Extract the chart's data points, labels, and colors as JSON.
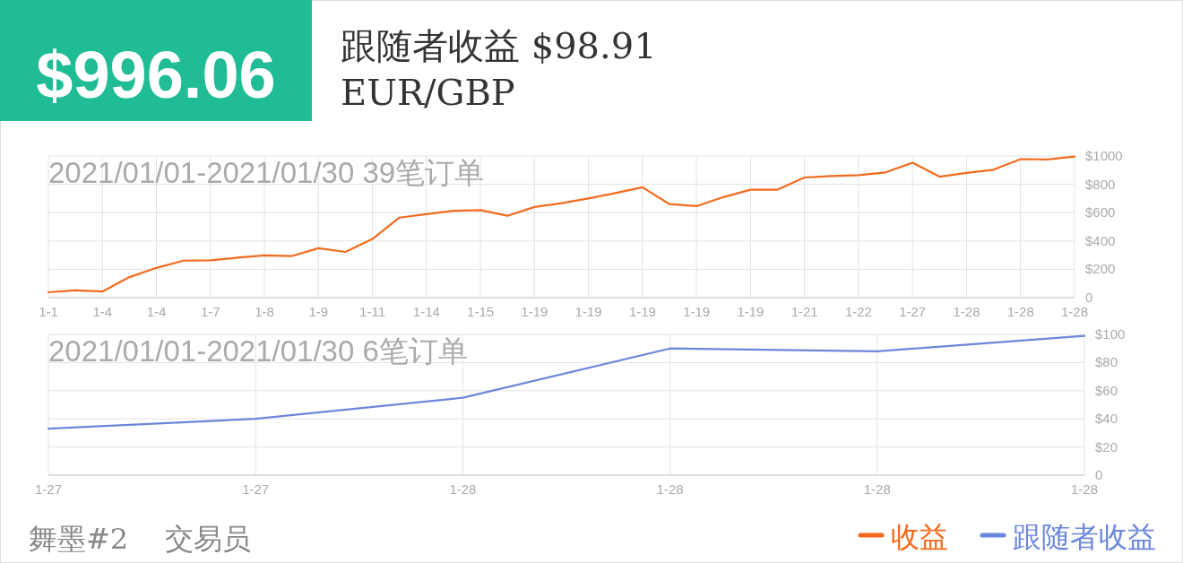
{
  "chart_data": [
    {
      "type": "line",
      "title": "2021/01/01-2021/01/30 39笔订单",
      "annotations": [
        "$996.06",
        "跟随者收益 $98.91",
        "EUR/GBP"
      ],
      "categories": [
        "1-1",
        null,
        "1-4",
        null,
        "1-4",
        null,
        "1-7",
        null,
        "1-8",
        null,
        "1-9",
        null,
        "1-11",
        null,
        "1-14",
        null,
        "1-15",
        null,
        "1-19",
        null,
        "1-19",
        null,
        "1-19",
        null,
        "1-19",
        null,
        "1-19",
        null,
        "1-21",
        null,
        "1-22",
        null,
        "1-27",
        null,
        "1-28",
        null,
        "1-28",
        null,
        "1-28"
      ],
      "series": [
        {
          "name": "收益",
          "color": "#f26b1d",
          "values": [
            38,
            51,
            43,
            145,
            210,
            261,
            263,
            282,
            298,
            293,
            349,
            323,
            414,
            565,
            589,
            613,
            618,
            578,
            640,
            667,
            700,
            738,
            779,
            660,
            646,
            710,
            762,
            762,
            848,
            859,
            865,
            884,
            953,
            854,
            881,
            903,
            978,
            975,
            996
          ]
        }
      ],
      "ylim": [
        0,
        1000
      ],
      "yticks": [
        0,
        {
          "value": 200,
          "label": "$200"
        },
        {
          "value": 400,
          "label": "$400"
        },
        {
          "value": 600,
          "label": "$600"
        },
        {
          "value": 800,
          "label": "$800"
        },
        {
          "value": 1000,
          "label": "$1000"
        }
      ],
      "grid": true,
      "legend": "bottom right",
      "marker": "none"
    },
    {
      "type": "line",
      "title": "2021/01/01-2021/01/30 6笔订单",
      "annotations": [
        "舞墨#2",
        "交易员"
      ],
      "categories": [
        "1-27",
        "1-27",
        "1-28",
        "1-28",
        "1-28",
        "1-28"
      ],
      "series": [
        {
          "name": "跟随者收益",
          "color": "#6b87db",
          "values": [
            33,
            40,
            55,
            90,
            88,
            99
          ]
        }
      ],
      "ylim": [
        0,
        100
      ],
      "yticks": [
        0,
        {
          "value": 20,
          "label": "$20"
        },
        {
          "value": 40,
          "label": "$40"
        },
        {
          "value": 60,
          "label": "$60"
        },
        {
          "value": 80,
          "label": "$80"
        },
        {
          "value": 100,
          "label": "$100"
        }
      ],
      "grid": true,
      "legend": "bottom right",
      "marker": "none"
    }
  ]
}
